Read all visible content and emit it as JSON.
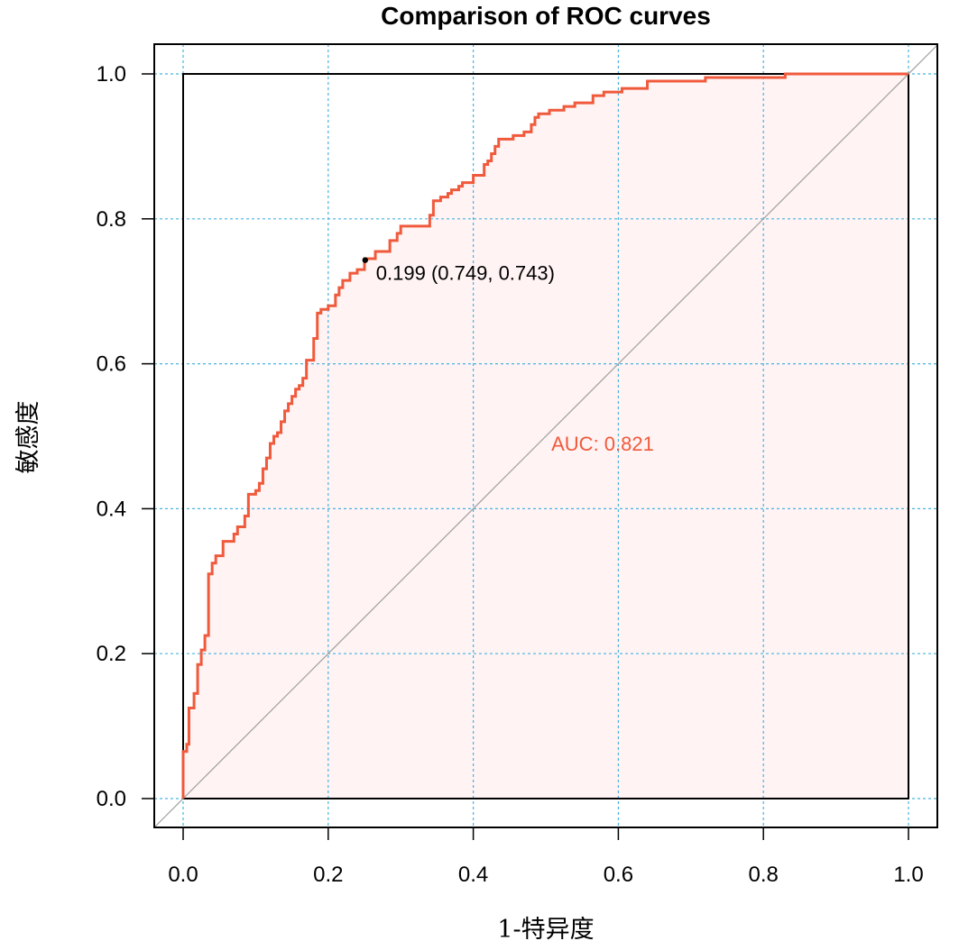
{
  "chart_data": {
    "type": "line",
    "title": "Comparison of ROC curves",
    "xlabel": "1-特异度",
    "ylabel": "敏感度",
    "xlim": [
      0,
      1
    ],
    "ylim": [
      0,
      1
    ],
    "x_ticks": [
      "0.0",
      "0.2",
      "0.4",
      "0.6",
      "0.8",
      "1.0"
    ],
    "y_ticks": [
      "0.0",
      "0.2",
      "0.4",
      "0.6",
      "0.8",
      "1.0"
    ],
    "grid": true,
    "reference_line": "diagonal",
    "colors": {
      "curve": "#f05a3c",
      "fill": "#fff3f3",
      "grid": "#49b3e0",
      "diagonal": "#a0a0a0",
      "point": "#000000",
      "auc_text": "#f05a3c"
    },
    "series": [
      {
        "points": [
          [
            0.0,
            0.0
          ],
          [
            0.0,
            0.065
          ],
          [
            0.005,
            0.065
          ],
          [
            0.005,
            0.075
          ],
          [
            0.008,
            0.075
          ],
          [
            0.008,
            0.125
          ],
          [
            0.015,
            0.125
          ],
          [
            0.015,
            0.145
          ],
          [
            0.02,
            0.145
          ],
          [
            0.02,
            0.185
          ],
          [
            0.025,
            0.185
          ],
          [
            0.025,
            0.205
          ],
          [
            0.03,
            0.205
          ],
          [
            0.03,
            0.225
          ],
          [
            0.035,
            0.225
          ],
          [
            0.035,
            0.31
          ],
          [
            0.04,
            0.31
          ],
          [
            0.04,
            0.325
          ],
          [
            0.045,
            0.325
          ],
          [
            0.045,
            0.335
          ],
          [
            0.055,
            0.335
          ],
          [
            0.055,
            0.355
          ],
          [
            0.07,
            0.355
          ],
          [
            0.07,
            0.365
          ],
          [
            0.075,
            0.365
          ],
          [
            0.075,
            0.375
          ],
          [
            0.085,
            0.375
          ],
          [
            0.085,
            0.39
          ],
          [
            0.09,
            0.39
          ],
          [
            0.09,
            0.42
          ],
          [
            0.1,
            0.42
          ],
          [
            0.1,
            0.425
          ],
          [
            0.105,
            0.425
          ],
          [
            0.105,
            0.435
          ],
          [
            0.11,
            0.435
          ],
          [
            0.11,
            0.455
          ],
          [
            0.115,
            0.455
          ],
          [
            0.115,
            0.47
          ],
          [
            0.12,
            0.47
          ],
          [
            0.12,
            0.49
          ],
          [
            0.125,
            0.49
          ],
          [
            0.125,
            0.5
          ],
          [
            0.13,
            0.5
          ],
          [
            0.13,
            0.505
          ],
          [
            0.135,
            0.505
          ],
          [
            0.135,
            0.52
          ],
          [
            0.14,
            0.52
          ],
          [
            0.14,
            0.535
          ],
          [
            0.145,
            0.535
          ],
          [
            0.145,
            0.545
          ],
          [
            0.15,
            0.545
          ],
          [
            0.15,
            0.555
          ],
          [
            0.155,
            0.555
          ],
          [
            0.155,
            0.565
          ],
          [
            0.16,
            0.565
          ],
          [
            0.16,
            0.57
          ],
          [
            0.165,
            0.57
          ],
          [
            0.165,
            0.58
          ],
          [
            0.17,
            0.58
          ],
          [
            0.17,
            0.605
          ],
          [
            0.18,
            0.605
          ],
          [
            0.18,
            0.635
          ],
          [
            0.185,
            0.635
          ],
          [
            0.185,
            0.67
          ],
          [
            0.19,
            0.67
          ],
          [
            0.19,
            0.675
          ],
          [
            0.2,
            0.675
          ],
          [
            0.2,
            0.68
          ],
          [
            0.21,
            0.68
          ],
          [
            0.21,
            0.695
          ],
          [
            0.215,
            0.695
          ],
          [
            0.215,
            0.705
          ],
          [
            0.22,
            0.705
          ],
          [
            0.22,
            0.715
          ],
          [
            0.23,
            0.715
          ],
          [
            0.23,
            0.725
          ],
          [
            0.24,
            0.725
          ],
          [
            0.24,
            0.73
          ],
          [
            0.25,
            0.73
          ],
          [
            0.25,
            0.745
          ],
          [
            0.265,
            0.745
          ],
          [
            0.265,
            0.755
          ],
          [
            0.285,
            0.755
          ],
          [
            0.285,
            0.77
          ],
          [
            0.295,
            0.77
          ],
          [
            0.295,
            0.78
          ],
          [
            0.3,
            0.78
          ],
          [
            0.3,
            0.79
          ],
          [
            0.34,
            0.79
          ],
          [
            0.34,
            0.805
          ],
          [
            0.345,
            0.805
          ],
          [
            0.345,
            0.825
          ],
          [
            0.355,
            0.825
          ],
          [
            0.355,
            0.83
          ],
          [
            0.365,
            0.83
          ],
          [
            0.365,
            0.835
          ],
          [
            0.37,
            0.835
          ],
          [
            0.37,
            0.84
          ],
          [
            0.38,
            0.84
          ],
          [
            0.38,
            0.845
          ],
          [
            0.385,
            0.845
          ],
          [
            0.385,
            0.85
          ],
          [
            0.4,
            0.85
          ],
          [
            0.4,
            0.86
          ],
          [
            0.415,
            0.86
          ],
          [
            0.415,
            0.875
          ],
          [
            0.42,
            0.875
          ],
          [
            0.42,
            0.88
          ],
          [
            0.425,
            0.88
          ],
          [
            0.425,
            0.89
          ],
          [
            0.43,
            0.89
          ],
          [
            0.43,
            0.9
          ],
          [
            0.435,
            0.9
          ],
          [
            0.435,
            0.91
          ],
          [
            0.455,
            0.91
          ],
          [
            0.455,
            0.915
          ],
          [
            0.47,
            0.915
          ],
          [
            0.47,
            0.92
          ],
          [
            0.48,
            0.92
          ],
          [
            0.48,
            0.93
          ],
          [
            0.485,
            0.93
          ],
          [
            0.485,
            0.94
          ],
          [
            0.49,
            0.94
          ],
          [
            0.49,
            0.945
          ],
          [
            0.505,
            0.945
          ],
          [
            0.505,
            0.95
          ],
          [
            0.525,
            0.95
          ],
          [
            0.525,
            0.955
          ],
          [
            0.54,
            0.955
          ],
          [
            0.54,
            0.96
          ],
          [
            0.565,
            0.96
          ],
          [
            0.565,
            0.97
          ],
          [
            0.58,
            0.97
          ],
          [
            0.58,
            0.975
          ],
          [
            0.605,
            0.975
          ],
          [
            0.605,
            0.98
          ],
          [
            0.64,
            0.98
          ],
          [
            0.64,
            0.99
          ],
          [
            0.72,
            0.99
          ],
          [
            0.72,
            0.995
          ],
          [
            0.83,
            0.995
          ],
          [
            0.83,
            1.0
          ],
          [
            1.0,
            1.0
          ]
        ]
      }
    ],
    "cutoff_point": {
      "x": 0.251,
      "y": 0.743,
      "label": "0.199 (0.749, 0.743)"
    },
    "auc_label": "AUC: 0.821"
  }
}
